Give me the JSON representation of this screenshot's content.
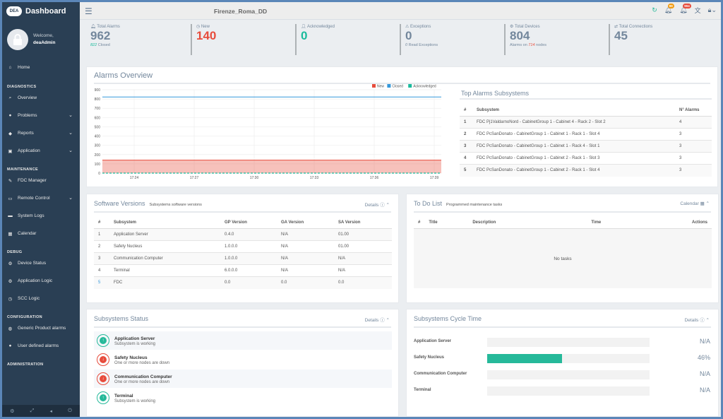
{
  "app": {
    "title": "Dashboard",
    "logo": "DEA"
  },
  "profile": {
    "welcome": "Welcome,",
    "user": "deaAdmin"
  },
  "nav": {
    "home": "Home",
    "diagnostics": "DIAGNOSTICS",
    "overview": "Overview",
    "problems": "Problems",
    "reports": "Reports",
    "application": "Application",
    "maintenance": "MAINTENANCE",
    "fdc_manager": "FDC Manager",
    "remote_control": "Remote Control",
    "system_logs": "System Logs",
    "calendar": "Calendar",
    "debug": "DEBUG",
    "device_status": "Device Status",
    "application_logic": "Application Logic",
    "scc_logic": "SCC Logic",
    "configuration": "CONFIGURATION",
    "generic_product_alarms": "Generic Product alarms",
    "user_defined_alarms": "User defined alarms",
    "administration": "ADMINISTRATION"
  },
  "topbar": {
    "station": "Firenze_Roma_DD",
    "alarm_badge": "99",
    "notif_badge": "904"
  },
  "stats": {
    "total_alarms": {
      "label": "Total Alarms",
      "value": "962",
      "sub_value": "822",
      "sub_text": "Closed"
    },
    "new": {
      "label": "New",
      "value": "140"
    },
    "acknowledged": {
      "label": "Acknowledged",
      "value": "0"
    },
    "exceptions": {
      "label": "Exceptions",
      "value": "0",
      "sub_value": "0",
      "sub_text": "Read Exceptions"
    },
    "total_devices": {
      "label": "Total Devices",
      "value": "804",
      "sub_pre": "Alarms on",
      "sub_value": "714",
      "sub_post": "nodes"
    },
    "total_connections": {
      "label": "Total Connections",
      "value": "45"
    }
  },
  "alarms_overview": {
    "title": "Alarms Overview"
  },
  "chart_data": {
    "type": "area",
    "title": "",
    "x": [
      "17:24",
      "17:27",
      "17:30",
      "17:33",
      "17:36",
      "17:39"
    ],
    "ylim": [
      0,
      900
    ],
    "yticks": [
      0,
      100,
      200,
      300,
      400,
      500,
      600,
      700,
      800,
      900
    ],
    "legend_position": "top-right",
    "grid": true,
    "series": [
      {
        "name": "New",
        "color": "#e74c3c",
        "values": [
          140,
          140,
          140,
          140,
          140,
          140
        ]
      },
      {
        "name": "Closed",
        "color": "#3498db",
        "values": [
          822,
          822,
          822,
          822,
          822,
          822
        ]
      },
      {
        "name": "Acknowledged",
        "color": "#1abb9c",
        "values": [
          0,
          0,
          0,
          0,
          0,
          0
        ]
      }
    ]
  },
  "top_alarms": {
    "title": "Top Alarms Subsystems",
    "headers": [
      "#",
      "Subsystem",
      "N° Alarms"
    ],
    "rows": [
      [
        "1",
        "FDC Pj1ValdarnoNord - CabinetGroup 1 - Cabinet 4 - Rack 2 - Slot 2",
        "4"
      ],
      [
        "2",
        "FDC PcSanDonato - CabinetGroup 1 - Cabinet 1 - Rack 1 - Slot 4",
        "3"
      ],
      [
        "3",
        "FDC PcSanDonato - CabinetGroup 1 - Cabinet 1 - Rack 4 - Slot 1",
        "3"
      ],
      [
        "4",
        "FDC PcSanDonato - CabinetGroup 1 - Cabinet 2 - Rack 1 - Slot 3",
        "3"
      ],
      [
        "5",
        "FDC PcSanDonato - CabinetGroup 1 - Cabinet 2 - Rack 1 - Slot 4",
        "3"
      ]
    ]
  },
  "software_versions": {
    "title": "Software Versions",
    "subtitle": "Subsystems software versions",
    "details": "Details",
    "headers": [
      "#",
      "Subsystem",
      "GP Version",
      "GA Version",
      "SA Version"
    ],
    "rows": [
      [
        "1",
        "Application Server",
        "0.4.0",
        "N/A",
        "01.00"
      ],
      [
        "2",
        "Safety Nucleus",
        "1.0.0.0",
        "N/A",
        "01.00"
      ],
      [
        "3",
        "Communication Computer",
        "1.0.0.0",
        "N/A",
        "N/A"
      ],
      [
        "4",
        "Terminal",
        "6.0.0.0",
        "N/A",
        "N/A"
      ],
      [
        "5",
        "FDC",
        "0.0",
        "0.0",
        "0.0"
      ]
    ]
  },
  "todo": {
    "title": "To Do List",
    "subtitle": "Programmed maintenance tasks",
    "calendar": "Calendar",
    "headers": [
      "#",
      "Title",
      "Description",
      "Time",
      "Actions"
    ],
    "empty": "No tasks"
  },
  "subsystems_status": {
    "title": "Subsystems Status",
    "details": "Details",
    "items": [
      {
        "name": "Application Server",
        "status": "Subsystem is working",
        "state": "ok"
      },
      {
        "name": "Safety Nucleus",
        "status": "One or more nodes are down",
        "state": "down"
      },
      {
        "name": "Communication Computer",
        "status": "One or more nodes are down",
        "state": "down"
      },
      {
        "name": "Terminal",
        "status": "Subsystem is working",
        "state": "ok"
      }
    ],
    "colors": {
      "ok": "#26b99a",
      "down": "#e74c3c"
    }
  },
  "cycle_time": {
    "title": "Subsystems Cycle Time",
    "details": "Details",
    "items": [
      {
        "name": "Application Server",
        "value": "N/A",
        "fraction": 0
      },
      {
        "name": "Safety Nucleus",
        "value": "46%",
        "fraction": 0.46
      },
      {
        "name": "Communication Computer",
        "value": "N/A",
        "fraction": 0
      },
      {
        "name": "Terminal",
        "value": "N/A",
        "fraction": 0
      }
    ]
  }
}
